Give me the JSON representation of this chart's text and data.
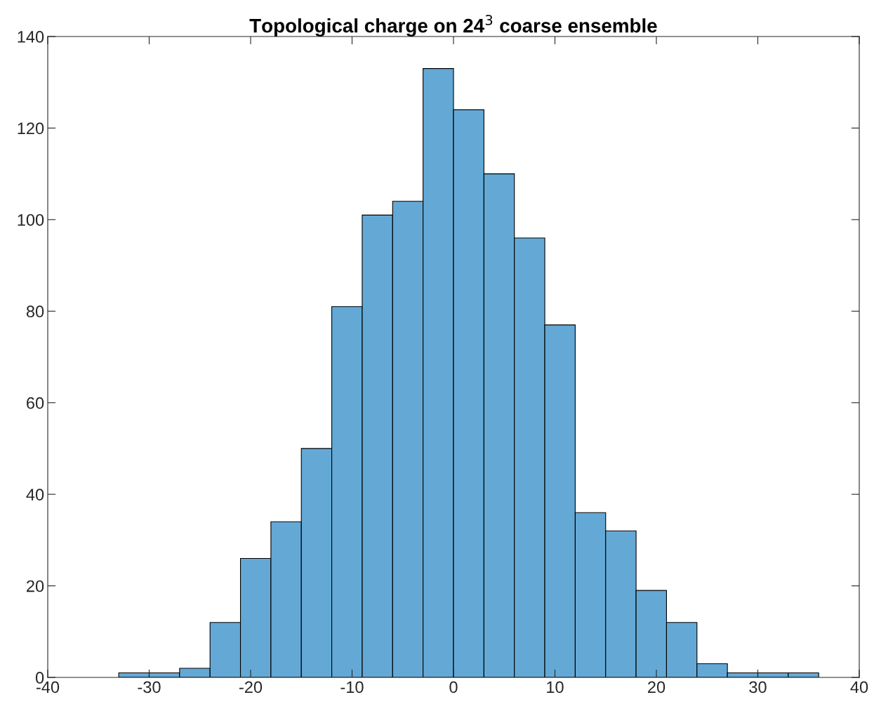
{
  "chart_data": {
    "type": "histogram",
    "title": "Topological charge on 24$^{3}$ coarse ensemble",
    "bins": [
      -33,
      -30,
      -27,
      -24,
      -21,
      -18,
      -15,
      -12,
      -9,
      -6,
      -3,
      0,
      3,
      6,
      9,
      12,
      15,
      18,
      21,
      24,
      27,
      30,
      33,
      36
    ],
    "values": [
      1,
      1,
      2,
      12,
      26,
      34,
      50,
      81,
      101,
      104,
      133,
      124,
      110,
      96,
      77,
      36,
      32,
      19,
      12,
      3,
      1,
      1,
      1
    ],
    "color": "#64a9d6",
    "xlim": [
      -40,
      40
    ],
    "xticks": [
      -40,
      -30,
      -20,
      -10,
      0,
      10,
      20,
      30,
      40
    ],
    "ylim": [
      0,
      140
    ],
    "yticks": [
      0,
      20,
      40,
      60,
      80,
      100,
      120,
      140
    ],
    "grid": false,
    "legend": false
  }
}
